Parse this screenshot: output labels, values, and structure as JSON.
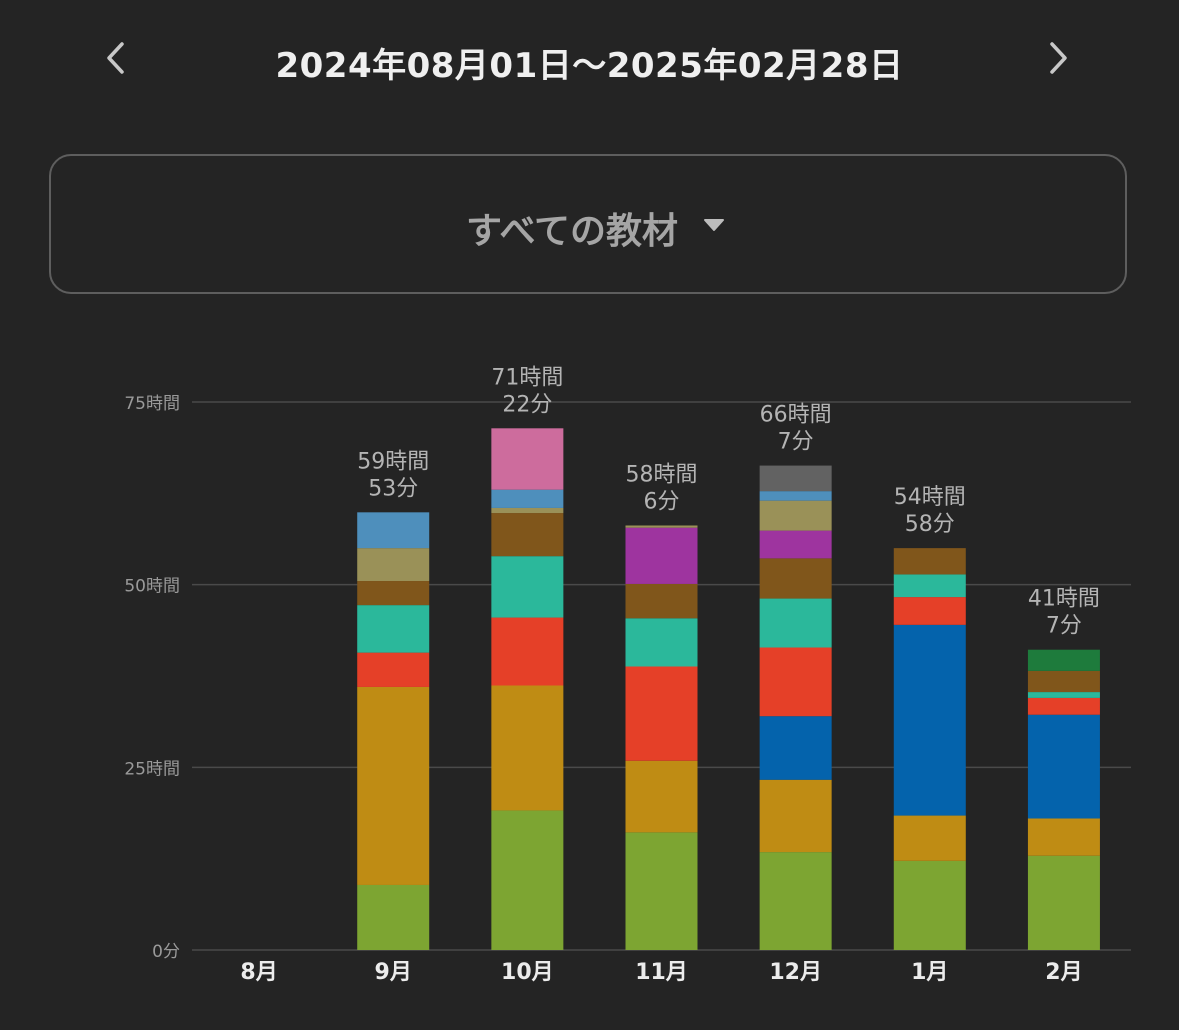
{
  "header": {
    "date_range": "2024年08月01日〜2025年02月28日",
    "prev_icon": "chevron-left-icon",
    "next_icon": "chevron-right-icon"
  },
  "selector": {
    "label": "すべての教材",
    "icon": "caret-down-icon"
  },
  "colors": {
    "background": "#242424",
    "gridline": "#4a4a4a",
    "axis_text": "#9a9a9a",
    "total_label": "#b4b4b4",
    "month_label": "#ececec"
  },
  "chart_data": {
    "type": "bar",
    "stacked": true,
    "unit": "時間",
    "categories": [
      "8月",
      "9月",
      "10月",
      "11月",
      "12月",
      "1月",
      "2月"
    ],
    "ylim": [
      0,
      75
    ],
    "yticks": [
      0,
      25,
      50,
      75
    ],
    "ytick_labels": [
      "0分",
      "25時間",
      "50時間",
      "75時間"
    ],
    "grid": true,
    "totals": [
      null,
      [
        "59時間",
        "53分"
      ],
      [
        "71時間",
        "22分"
      ],
      [
        "58時間",
        "6分"
      ],
      [
        "66時間",
        "7分"
      ],
      [
        "54時間",
        "58分"
      ],
      [
        "41時間",
        "7分"
      ]
    ],
    "series": [
      {
        "color": "#7da532",
        "values": [
          0,
          8.9,
          19.1,
          16.1,
          13.4,
          12.2,
          12.9
        ]
      },
      {
        "color": "#bf8c14",
        "values": [
          0,
          27.1,
          17.1,
          9.8,
          9.9,
          6.2,
          5.1
        ]
      },
      {
        "color": "#0463ac",
        "values": [
          0,
          0,
          0,
          0,
          8.7,
          26.1,
          14.2
        ]
      },
      {
        "color": "#e54028",
        "values": [
          0,
          4.7,
          9.3,
          12.9,
          9.4,
          3.8,
          2.3
        ]
      },
      {
        "color": "#2bb89b",
        "values": [
          0,
          6.5,
          8.4,
          6.6,
          6.7,
          3.1,
          0.8
        ]
      },
      {
        "color": "#80561b",
        "values": [
          0,
          3.3,
          5.9,
          4.7,
          5.5,
          3.6,
          2.9
        ]
      },
      {
        "color": "#9e349f",
        "values": [
          0,
          0,
          0,
          7.7,
          3.8,
          0,
          0
        ]
      },
      {
        "color": "#9a9158",
        "values": [
          0,
          4.5,
          0.7,
          0.3,
          4.1,
          0,
          0
        ]
      },
      {
        "color": "#4e8fbc",
        "values": [
          0,
          4.9,
          2.5,
          0,
          1.3,
          0,
          0
        ]
      },
      {
        "color": "#cd6c9d",
        "values": [
          0,
          0,
          8.4,
          0,
          0,
          0,
          0
        ]
      },
      {
        "color": "#626262",
        "values": [
          0,
          0,
          0,
          0,
          3.5,
          0,
          0
        ]
      },
      {
        "color": "#1e7b3c",
        "values": [
          0,
          0,
          0,
          0,
          0,
          0,
          2.9
        ]
      }
    ]
  }
}
